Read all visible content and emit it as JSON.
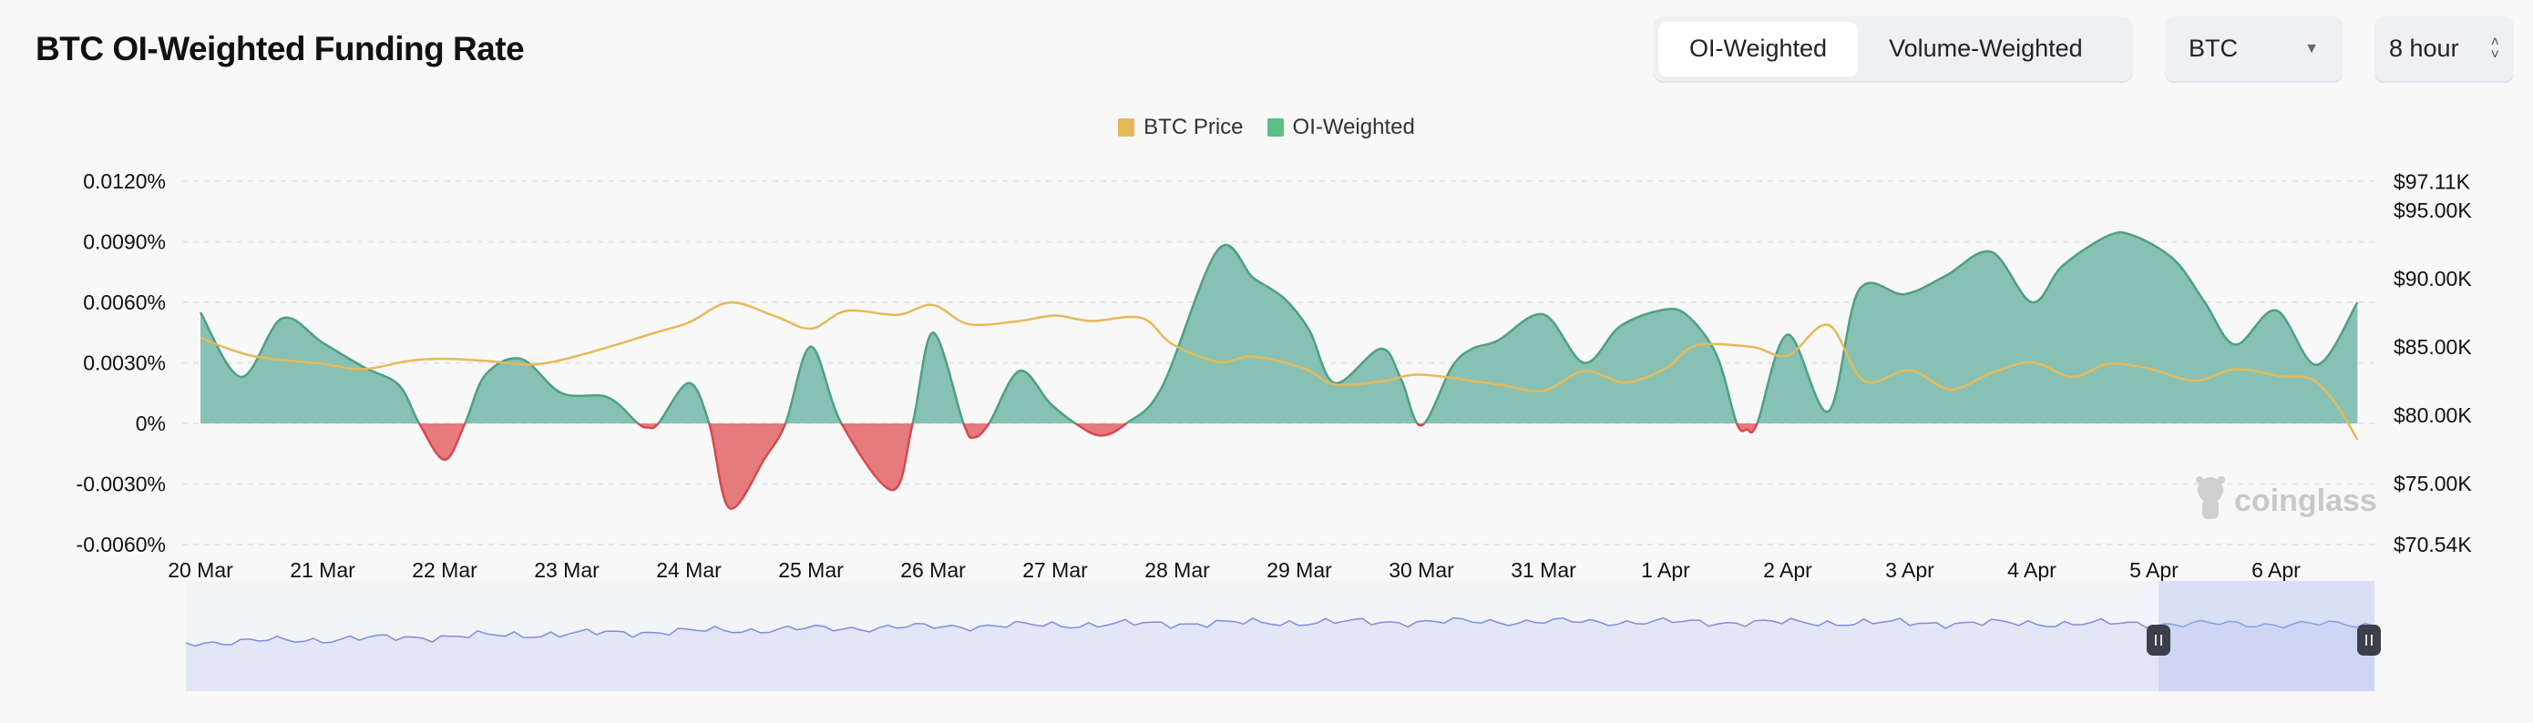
{
  "header": {
    "title": "BTC OI-Weighted Funding Rate"
  },
  "toggle": {
    "options": [
      "OI-Weighted",
      "Volume-Weighted"
    ],
    "active": "OI-Weighted"
  },
  "symbol_select": {
    "value": "BTC"
  },
  "interval_select": {
    "value": "8 hour"
  },
  "watermark": "coinglass",
  "colors": {
    "positive": "#86c1b3",
    "positive_line": "#4e9f86",
    "negative": "#e67b7e",
    "negative_line": "#d9474d",
    "price": "#e6b959",
    "navigator": "#7b8ee0"
  },
  "chart_data": {
    "type": "area",
    "legend": [
      "BTC Price",
      "OI-Weighted"
    ],
    "legend_position": "top",
    "grid": true,
    "x_ticks": [
      "20 Mar",
      "21 Mar",
      "22 Mar",
      "23 Mar",
      "24 Mar",
      "25 Mar",
      "26 Mar",
      "27 Mar",
      "28 Mar",
      "29 Mar",
      "30 Mar",
      "31 Mar",
      "1 Apr",
      "2 Apr",
      "3 Apr",
      "4 Apr",
      "5 Apr",
      "6 Apr"
    ],
    "y_left_ticks": [
      "0.0120%",
      "0.0090%",
      "0.0060%",
      "0.0030%",
      "0%",
      "-0.0030%",
      "-0.0060%"
    ],
    "y_left_range": [
      -0.006,
      0.012
    ],
    "y_right_ticks": [
      "$97.11K",
      "$95.00K",
      "$90.00K",
      "$85.00K",
      "$80.00K",
      "$75.00K",
      "$70.54K"
    ],
    "y_right_range": [
      70.54,
      97.11
    ],
    "series": [
      {
        "name": "OI-Weighted",
        "unit": "%",
        "points": [
          [
            "03-20 00:00",
            0.0055
          ],
          [
            "03-20 08:00",
            0.0023
          ],
          [
            "03-20 16:00",
            0.0052
          ],
          [
            "03-21 00:00",
            0.004
          ],
          [
            "03-21 08:00",
            0.0028
          ],
          [
            "03-21 15:00",
            0.0019
          ],
          [
            "03-21 19:00",
            0
          ],
          [
            "03-22 00:00",
            -0.0018
          ],
          [
            "03-22 04:00",
            0
          ],
          [
            "03-22 08:00",
            0.0024
          ],
          [
            "03-22 15:00",
            0.0032
          ],
          [
            "03-22 23:00",
            0.0015
          ],
          [
            "03-23 08:00",
            0.0013
          ],
          [
            "03-23 14:00",
            0
          ],
          [
            "03-23 16:00",
            -0.0002
          ],
          [
            "03-23 18:00",
            0
          ],
          [
            "03-24 00:00",
            0.002
          ],
          [
            "03-24 04:00",
            0
          ],
          [
            "03-24 08:00",
            -0.0042
          ],
          [
            "03-24 15:00",
            -0.0017
          ],
          [
            "03-24 19:00",
            0
          ],
          [
            "03-25 00:00",
            0.0038
          ],
          [
            "03-25 06:00",
            0
          ],
          [
            "03-25 16:00",
            -0.0033
          ],
          [
            "03-25 20:00",
            0
          ],
          [
            "03-26 00:00",
            0.0045
          ],
          [
            "03-26 06:00",
            0
          ],
          [
            "03-26 08:00",
            -0.0007
          ],
          [
            "03-26 11:00",
            0
          ],
          [
            "03-26 17:00",
            0.0026
          ],
          [
            "03-26 23:00",
            0.001
          ],
          [
            "03-27 04:00",
            0
          ],
          [
            "03-27 09:00",
            -0.0006
          ],
          [
            "03-27 14:00",
            0
          ],
          [
            "03-27 21:00",
            0.0018
          ],
          [
            "03-28 08:00",
            0.0086
          ],
          [
            "03-28 15:00",
            0.0072
          ],
          [
            "03-28 21:00",
            0.0062
          ],
          [
            "03-29 02:00",
            0.0046
          ],
          [
            "03-29 07:00",
            0.002
          ],
          [
            "03-29 16:00",
            0.0037
          ],
          [
            "03-29 20:00",
            0.0022
          ],
          [
            "03-30 00:00",
            -0.0001
          ],
          [
            "03-30 06:00",
            0.0028
          ],
          [
            "03-30 10:00",
            0.0037
          ],
          [
            "03-30 15:00",
            0.0041
          ],
          [
            "03-31 00:00",
            0.0054
          ],
          [
            "03-31 08:00",
            0.003
          ],
          [
            "03-31 15:00",
            0.0048
          ],
          [
            "03-31 23:00",
            0.0056
          ],
          [
            "04-01 04:00",
            0.0054
          ],
          [
            "04-01 10:00",
            0.0034
          ],
          [
            "04-01 14:00",
            0
          ],
          [
            "04-01 16:00",
            -0.0003
          ],
          [
            "04-01 18:00",
            0
          ],
          [
            "04-02 00:00",
            0.0044
          ],
          [
            "04-02 08:00",
            0.0006
          ],
          [
            "04-02 14:00",
            0.0066
          ],
          [
            "04-02 23:00",
            0.0064
          ],
          [
            "04-03 07:00",
            0.0073
          ],
          [
            "04-03 16:00",
            0.0085
          ],
          [
            "04-04 00:00",
            0.006
          ],
          [
            "04-04 06:00",
            0.0078
          ],
          [
            "04-04 15:00",
            0.0093
          ],
          [
            "04-04 20:00",
            0.0093
          ],
          [
            "04-05 04:00",
            0.0081
          ],
          [
            "04-05 10:00",
            0.006
          ],
          [
            "04-05 16:00",
            0.0039
          ],
          [
            "04-06 00:00",
            0.0056
          ],
          [
            "04-06 08:00",
            0.0029
          ],
          [
            "04-06 16:00",
            0.006
          ]
        ]
      },
      {
        "name": "BTC Price",
        "unit": "K USD",
        "points": [
          [
            "03-20 00:00",
            85.66
          ],
          [
            "03-20 10:00",
            84.36
          ],
          [
            "03-21 00:00",
            83.75
          ],
          [
            "03-21 08:00",
            83.37
          ],
          [
            "03-21 17:00",
            83.98
          ],
          [
            "03-22 00:00",
            84.13
          ],
          [
            "03-22 08:00",
            83.98
          ],
          [
            "03-22 18:00",
            83.73
          ],
          [
            "03-23 04:00",
            84.54
          ],
          [
            "03-23 17:00",
            86.0
          ],
          [
            "03-24 00:00",
            86.79
          ],
          [
            "03-24 08:00",
            88.25
          ],
          [
            "03-24 17:00",
            87.24
          ],
          [
            "03-25 00:00",
            86.34
          ],
          [
            "03-25 07:00",
            87.64
          ],
          [
            "03-25 17:00",
            87.35
          ],
          [
            "03-26 00:00",
            88.07
          ],
          [
            "03-26 07:00",
            86.67
          ],
          [
            "03-26 17:00",
            86.9
          ],
          [
            "03-27 00:00",
            87.3
          ],
          [
            "03-27 07:00",
            86.9
          ],
          [
            "03-27 17:00",
            87.12
          ],
          [
            "03-27 23:00",
            85.21
          ],
          [
            "03-28 08:00",
            83.91
          ],
          [
            "03-28 15:00",
            84.3
          ],
          [
            "03-29 01:00",
            83.42
          ],
          [
            "03-29 07:00",
            82.25
          ],
          [
            "03-29 17:00",
            82.52
          ],
          [
            "03-30 00:00",
            82.97
          ],
          [
            "03-30 15:00",
            82.25
          ],
          [
            "03-31 00:00",
            81.8
          ],
          [
            "03-31 08:00",
            83.24
          ],
          [
            "03-31 16:00",
            82.4
          ],
          [
            "04-01 00:00",
            83.42
          ],
          [
            "04-01 06:00",
            85.1
          ],
          [
            "04-01 17:00",
            85.0
          ],
          [
            "04-02 00:00",
            84.36
          ],
          [
            "04-02 08:00",
            86.61
          ],
          [
            "04-02 15:00",
            82.52
          ],
          [
            "04-03 00:00",
            83.3
          ],
          [
            "04-03 08:00",
            81.89
          ],
          [
            "04-03 16:00",
            83.08
          ],
          [
            "04-04 00:00",
            83.87
          ],
          [
            "04-04 08:00",
            82.81
          ],
          [
            "04-04 15:00",
            83.75
          ],
          [
            "04-04 23:00",
            83.42
          ],
          [
            "04-05 08:00",
            82.52
          ],
          [
            "04-05 16:00",
            83.37
          ],
          [
            "04-06 01:00",
            82.85
          ],
          [
            "04-06 07:00",
            82.63
          ],
          [
            "04-06 12:00",
            80.72
          ],
          [
            "04-06 16:00",
            78.2
          ]
        ]
      }
    ]
  }
}
